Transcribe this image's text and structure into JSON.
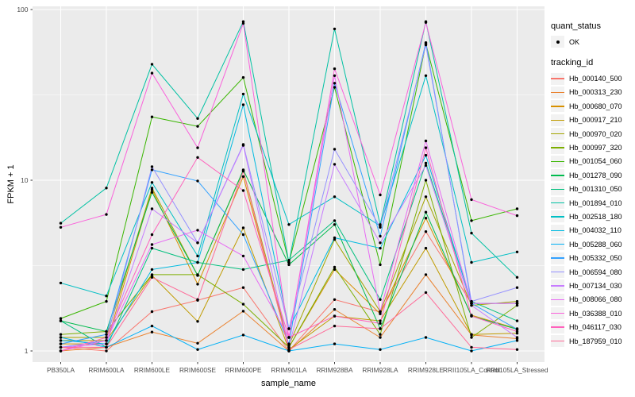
{
  "figure": {
    "background": "#FFFFFF"
  },
  "legend": {
    "quant_status_title": "quant_status",
    "quant_status_items": [
      "OK"
    ],
    "tracking_id_title": "tracking_id"
  },
  "chart_data": {
    "type": "line",
    "title": "",
    "xlabel": "sample_name",
    "ylabel": "FPKM + 1",
    "y_scale": "log10",
    "ylim": [
      1,
      100
    ],
    "y_ticks": [
      "1",
      "10",
      "100"
    ],
    "y_tick_values": [
      1,
      10,
      100
    ],
    "y_minor_tick_values": [
      3.1623,
      31.623
    ],
    "grid": true,
    "legend_position": "right",
    "panel_bg": "#EBEBEB",
    "grid_color": "#FFFFFF",
    "tick_color": "#333333",
    "tick_label_color": "#4D4D4D",
    "point_color": "#000000",
    "point_shape": "circle",
    "categories": [
      "PB350LA",
      "RRIM600LA",
      "RRIM600LE",
      "RRIM600SE",
      "RRIM600PE",
      "RRIM901LA",
      "RRIM928BA",
      "RRIM928LA",
      "RRIM928LE",
      "RRII105LA_Control",
      "RRII105LA_Stressed"
    ],
    "series": [
      {
        "name": "Hb_000140_500",
        "color": "#F8766D",
        "values": [
          1.05,
          1.0,
          1.7,
          1.98,
          2.35,
          1.0,
          2.0,
          1.69,
          5.0,
          1.9,
          1.9
        ]
      },
      {
        "name": "Hb_000313_230",
        "color": "#EA8331",
        "values": [
          1.0,
          1.05,
          1.29,
          1.11,
          1.71,
          1.0,
          1.75,
          1.2,
          2.8,
          1.24,
          1.18
        ]
      },
      {
        "name": "Hb_000680_070",
        "color": "#D89000",
        "values": [
          1.1,
          1.1,
          8.8,
          2.46,
          10.5,
          1.05,
          3.0,
          1.65,
          6.0,
          1.62,
          1.35
        ]
      },
      {
        "name": "Hb_000917_210",
        "color": "#C09B00",
        "values": [
          1.15,
          1.15,
          2.77,
          1.49,
          5.26,
          1.02,
          1.6,
          1.5,
          4.0,
          1.25,
          1.27
        ]
      },
      {
        "name": "Hb_000970_020",
        "color": "#A3A500",
        "values": [
          1.2,
          1.2,
          9.0,
          2.77,
          11.4,
          1.08,
          4.5,
          1.7,
          8.0,
          1.85,
          1.95
        ]
      },
      {
        "name": "Hb_000997_320",
        "color": "#7CAE00",
        "values": [
          1.25,
          1.3,
          2.8,
          2.8,
          1.88,
          1.05,
          3.1,
          1.25,
          10.0,
          1.2,
          1.85
        ]
      },
      {
        "name": "Hb_001054_060",
        "color": "#39B600",
        "values": [
          1.55,
          1.95,
          23.5,
          20.7,
          40.0,
          3.3,
          35.0,
          3.2,
          63.0,
          5.8,
          6.8
        ]
      },
      {
        "name": "Hb_001278_090",
        "color": "#00BB4E",
        "values": [
          1.5,
          1.3,
          8.5,
          2.77,
          11.5,
          3.2,
          5.5,
          1.35,
          6.5,
          1.6,
          1.34
        ]
      },
      {
        "name": "Hb_001310_050",
        "color": "#00BF7D",
        "values": [
          1.5,
          1.05,
          4.0,
          3.3,
          3.0,
          3.4,
          5.8,
          2.0,
          12.6,
          1.95,
          1.5
        ]
      },
      {
        "name": "Hb_001894_010",
        "color": "#00C1A3",
        "values": [
          5.6,
          9.0,
          47.8,
          23.0,
          85.0,
          3.3,
          77.0,
          5.5,
          85.0,
          4.9,
          2.7
        ]
      },
      {
        "name": "Hb_002518_180",
        "color": "#00BFC4",
        "values": [
          2.5,
          2.1,
          9.7,
          3.6,
          32.0,
          5.5,
          8.0,
          5.4,
          41.0,
          3.3,
          3.8
        ]
      },
      {
        "name": "Hb_004032_110",
        "color": "#00BAE0",
        "values": [
          1.15,
          1.1,
          3.0,
          3.3,
          27.7,
          1.35,
          4.6,
          4.0,
          14.0,
          1.9,
          1.9
        ]
      },
      {
        "name": "Hb_005288_060",
        "color": "#00B0F6",
        "values": [
          1.2,
          1.05,
          1.4,
          1.02,
          1.24,
          1.0,
          1.1,
          1.02,
          1.2,
          1.0,
          1.15
        ]
      },
      {
        "name": "Hb_005332_050",
        "color": "#35A2FF",
        "values": [
          1.1,
          1.25,
          11.5,
          9.9,
          4.8,
          1.1,
          37.0,
          4.7,
          64.0,
          1.9,
          1.34
        ]
      },
      {
        "name": "Hb_006594_080",
        "color": "#9590FF",
        "values": [
          1.05,
          1.15,
          12.0,
          4.3,
          16.2,
          1.35,
          15.2,
          5.3,
          62.0,
          1.95,
          2.35
        ]
      },
      {
        "name": "Hb_007134_030",
        "color": "#C77CFF",
        "values": [
          1.05,
          1.1,
          6.8,
          4.3,
          16.0,
          1.05,
          12.4,
          4.3,
          12.2,
          1.85,
          1.2
        ]
      },
      {
        "name": "Hb_008066_080",
        "color": "#E76BF3",
        "values": [
          1.0,
          1.15,
          4.2,
          5.1,
          3.6,
          1.2,
          41.0,
          1.7,
          17.0,
          1.9,
          1.9
        ]
      },
      {
        "name": "Hb_036388_010",
        "color": "#FA62DB",
        "values": [
          5.3,
          6.3,
          42.4,
          15.5,
          83.0,
          1.2,
          45.0,
          8.2,
          84.0,
          7.7,
          6.2
        ]
      },
      {
        "name": "Hb_046117_030",
        "color": "#FF62BC",
        "values": [
          1.0,
          1.2,
          4.8,
          13.6,
          8.7,
          1.2,
          1.6,
          1.45,
          15.5,
          1.6,
          1.3
        ]
      },
      {
        "name": "Hb_187959_010",
        "color": "#FF6A98",
        "values": [
          1.05,
          1.05,
          2.7,
          2.0,
          11.3,
          1.02,
          1.4,
          1.35,
          2.2,
          1.05,
          1.02
        ]
      }
    ]
  }
}
